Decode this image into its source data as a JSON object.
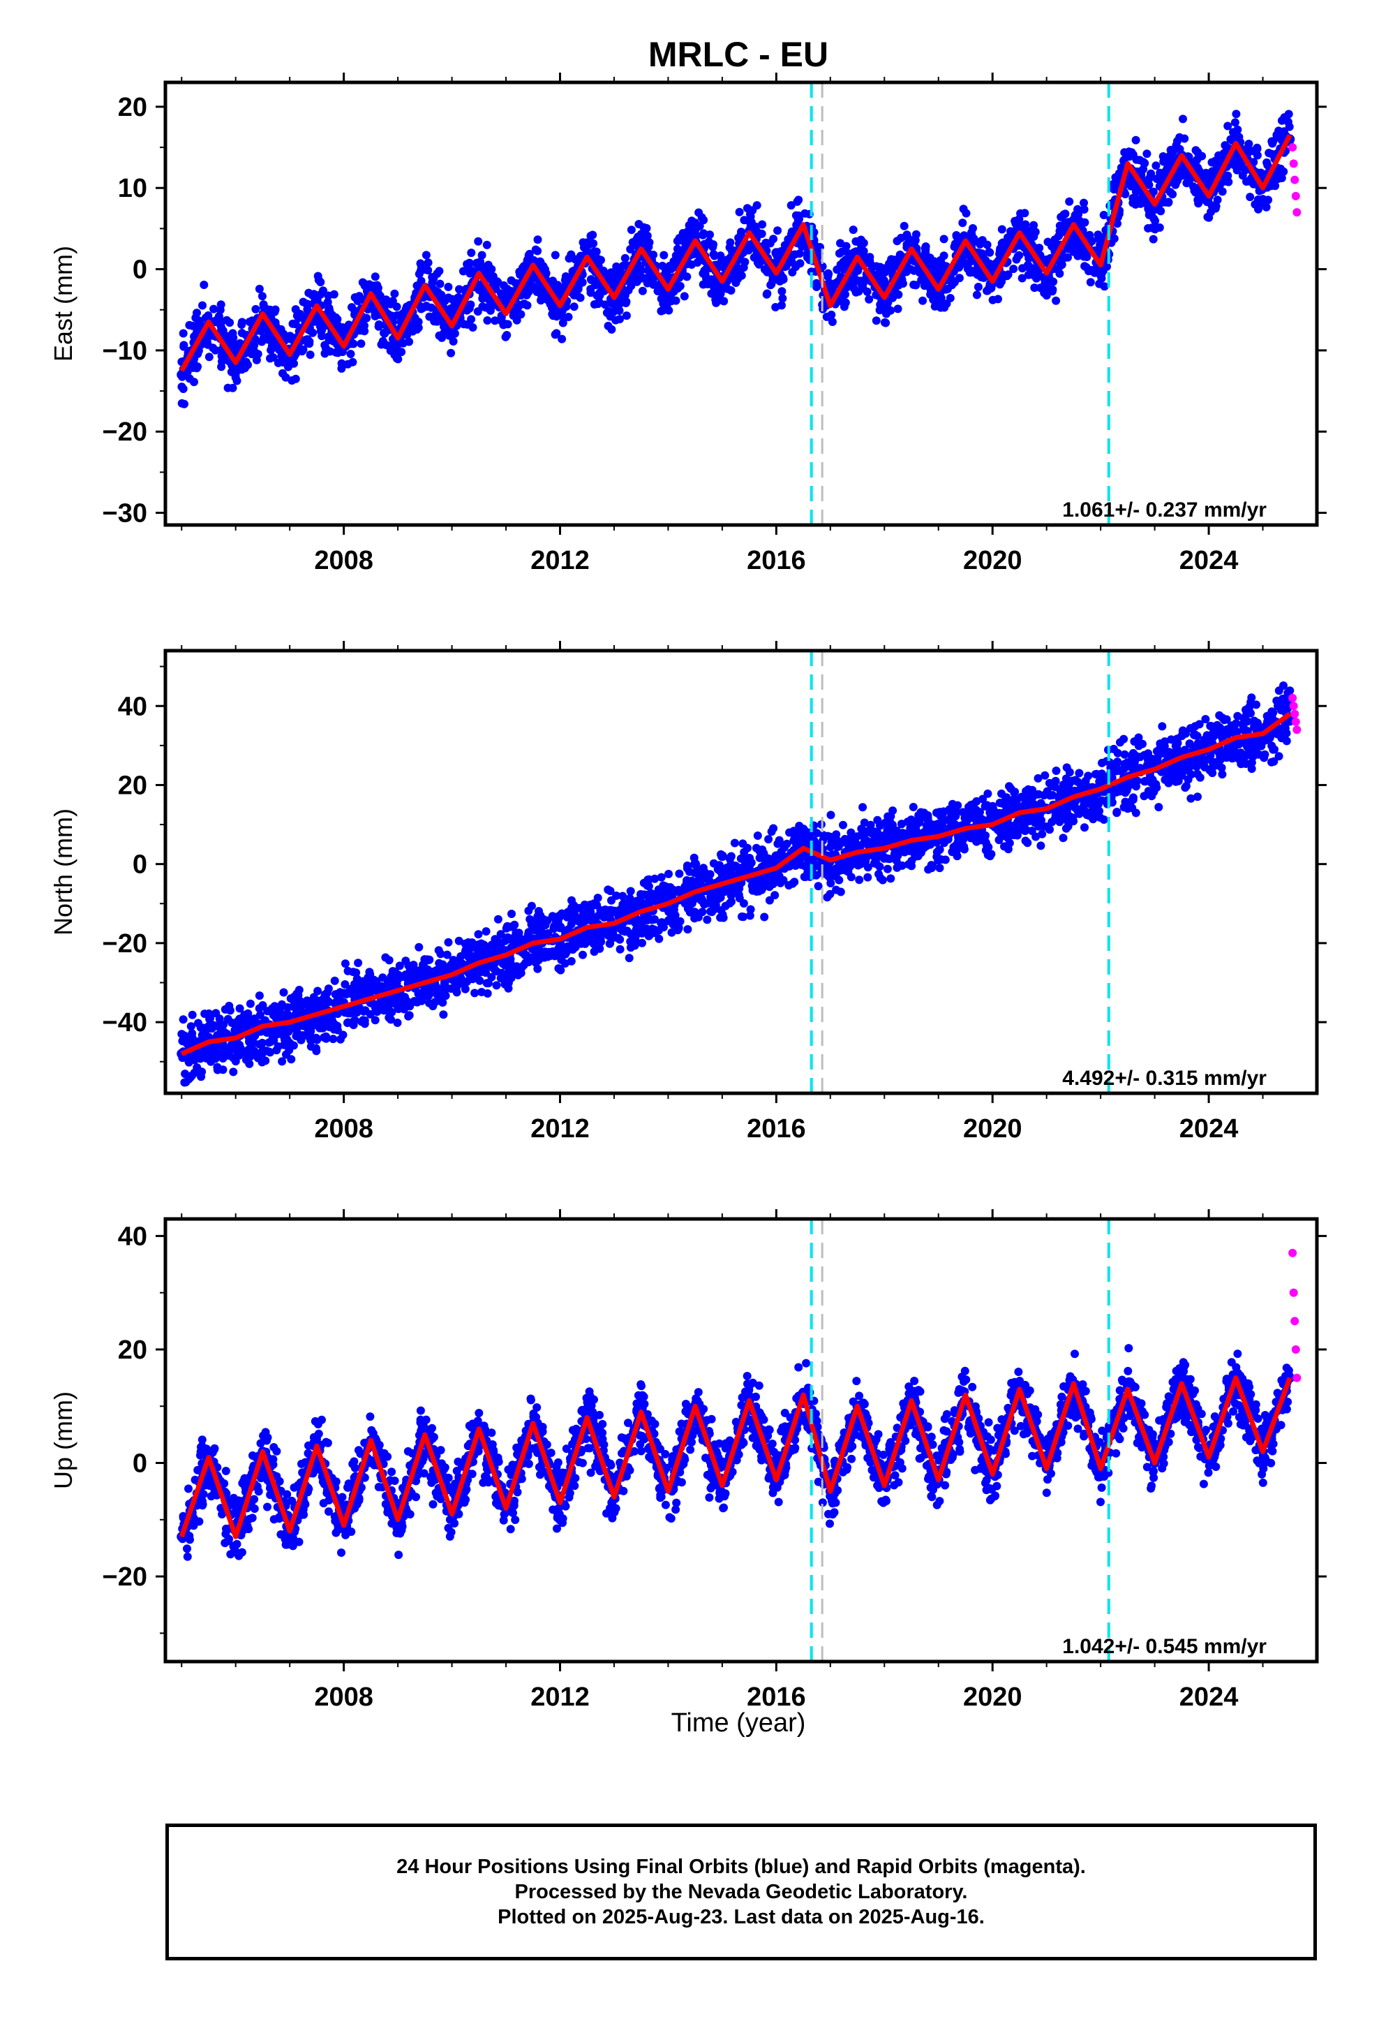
{
  "chart_data": {
    "type": "scatter",
    "title": "MRLC - EU",
    "xlabel": "Time (year)",
    "xlim": [
      2004.7,
      2026.0
    ],
    "x_ticks": [
      "2008",
      "2012",
      "2016",
      "2020",
      "2024"
    ],
    "grid": false,
    "colors": {
      "final_orbits": "#0000ff",
      "rapid_orbits": "#ff00ff",
      "model_fit": "#ff0000",
      "equipment_change": "#00e5ee",
      "other_event": "#bdbdbd"
    },
    "event_lines": [
      {
        "x": 2016.65,
        "type": "equipment_change"
      },
      {
        "x": 2016.85,
        "type": "other_event"
      },
      {
        "x": 2022.15,
        "type": "equipment_change"
      }
    ],
    "panels": [
      {
        "name": "east",
        "ylabel": "East (mm)",
        "ylim": [
          -31.5,
          23
        ],
        "y_ticks": [
          "20",
          "10",
          "0",
          "−10",
          "−20",
          "−30"
        ],
        "rate_label": "1.061+/- 0.237 mm/yr",
        "series": [
          {
            "name": "Final Orbits (blue)",
            "type": "scatter",
            "x": [
              2005.0,
              2005.5,
              2006.0,
              2006.5,
              2007.0,
              2007.5,
              2008.0,
              2008.5,
              2009.0,
              2009.5,
              2010.0,
              2010.5,
              2011.0,
              2011.5,
              2012.0,
              2012.5,
              2013.0,
              2013.5,
              2014.0,
              2014.5,
              2015.0,
              2015.5,
              2016.0,
              2016.5,
              2017.0,
              2017.5,
              2018.0,
              2018.5,
              2019.0,
              2019.5,
              2020.0,
              2020.5,
              2021.0,
              2021.5,
              2022.0,
              2022.5,
              2023.0,
              2023.5,
              2024.0,
              2024.5,
              2025.0,
              2025.5
            ],
            "y": [
              -13,
              -8,
              -11,
              -6,
              -10,
              -5,
              -9,
              -4,
              -8,
              -3,
              -6,
              -2,
              -5,
              1,
              -3,
              2,
              -2,
              3,
              -1,
              5,
              1,
              6,
              2,
              5,
              -2,
              1,
              -2,
              2,
              -1,
              3,
              0,
              4,
              1,
              6,
              3,
              12,
              8,
              14,
              9,
              15,
              10,
              16
            ]
          },
          {
            "name": "Rapid Orbits (magenta)",
            "type": "scatter",
            "x": [
              2025.55,
              2025.57,
              2025.59,
              2025.61,
              2025.63
            ],
            "y": [
              15,
              13,
              11,
              9,
              7
            ]
          },
          {
            "name": "model fit",
            "type": "line",
            "x": [
              2005.0,
              2005.5,
              2006.0,
              2006.5,
              2007.0,
              2007.5,
              2008.0,
              2008.5,
              2009.0,
              2009.5,
              2010.0,
              2010.5,
              2011.0,
              2011.5,
              2012.0,
              2012.5,
              2013.0,
              2013.5,
              2014.0,
              2014.5,
              2015.0,
              2015.5,
              2016.0,
              2016.5,
              2017.0,
              2017.5,
              2018.0,
              2018.5,
              2019.0,
              2019.5,
              2020.0,
              2020.5,
              2021.0,
              2021.5,
              2022.0,
              2022.5,
              2023.0,
              2023.5,
              2024.0,
              2024.5,
              2025.0,
              2025.5
            ],
            "y": [
              -12.5,
              -6.5,
              -11.5,
              -5.5,
              -10.5,
              -4.5,
              -9.5,
              -3,
              -8.5,
              -2,
              -7,
              -0.5,
              -5.5,
              0.5,
              -4.5,
              1.5,
              -3.5,
              2.5,
              -2.5,
              3.5,
              -1.5,
              4.5,
              -0.5,
              5.5,
              -4.5,
              1.5,
              -3.5,
              2.5,
              -2.5,
              3.5,
              -1.5,
              4.5,
              -0.5,
              5.5,
              0.5,
              13,
              8,
              14,
              9,
              15.5,
              10,
              16.5
            ]
          }
        ]
      },
      {
        "name": "north",
        "ylabel": "North (mm)",
        "ylim": [
          -58,
          54
        ],
        "y_ticks": [
          "40",
          "20",
          "0",
          "−20",
          "−40"
        ],
        "rate_label": "4.492+/- 0.315 mm/yr",
        "series": [
          {
            "name": "Final Orbits (blue)",
            "type": "scatter",
            "x": [
              2005.0,
              2005.5,
              2006.0,
              2006.5,
              2007.0,
              2007.5,
              2008.0,
              2008.5,
              2009.0,
              2009.5,
              2010.0,
              2010.5,
              2011.0,
              2011.5,
              2012.0,
              2012.5,
              2013.0,
              2013.5,
              2014.0,
              2014.5,
              2015.0,
              2015.5,
              2016.0,
              2016.5,
              2017.0,
              2017.5,
              2018.0,
              2018.5,
              2019.0,
              2019.5,
              2020.0,
              2020.5,
              2021.0,
              2021.5,
              2022.0,
              2022.5,
              2023.0,
              2023.5,
              2024.0,
              2024.5,
              2025.0,
              2025.5
            ],
            "y": [
              -48,
              -46,
              -44,
              -42,
              -40,
              -38,
              -37,
              -35,
              -33,
              -31,
              -28,
              -26,
              -22,
              -19,
              -16,
              -14,
              -12,
              -10,
              -7,
              0,
              2,
              1,
              2,
              4,
              1,
              3,
              4,
              6,
              7,
              9,
              10,
              12,
              14,
              17,
              19,
              22,
              25,
              27,
              30,
              33,
              34,
              37
            ]
          },
          {
            "name": "Rapid Orbits (magenta)",
            "type": "scatter",
            "x": [
              2025.55,
              2025.57,
              2025.59,
              2025.61,
              2025.63
            ],
            "y": [
              42,
              40,
              38,
              36,
              34
            ]
          },
          {
            "name": "model fit",
            "type": "line",
            "x": [
              2005.0,
              2005.5,
              2006.0,
              2006.5,
              2007.0,
              2007.5,
              2008.0,
              2008.5,
              2009.0,
              2009.5,
              2010.0,
              2010.5,
              2011.0,
              2011.5,
              2012.0,
              2012.5,
              2013.0,
              2013.5,
              2014.0,
              2014.5,
              2015.0,
              2015.5,
              2016.0,
              2016.5,
              2017.0,
              2017.5,
              2018.0,
              2018.5,
              2019.0,
              2019.5,
              2020.0,
              2020.5,
              2021.0,
              2021.5,
              2022.0,
              2022.5,
              2023.0,
              2023.5,
              2024.0,
              2024.5,
              2025.0,
              2025.5
            ],
            "y": [
              -48,
              -45,
              -44,
              -41,
              -40,
              -38,
              -36,
              -34,
              -32,
              -30,
              -28,
              -25,
              -23,
              -20,
              -19,
              -16,
              -15,
              -12,
              -10,
              -7,
              -5,
              -3,
              -1,
              4,
              1,
              3,
              4,
              6,
              7,
              9,
              10,
              13,
              14,
              17,
              19,
              22,
              24,
              27,
              29,
              32,
              33,
              38
            ]
          }
        ]
      },
      {
        "name": "up",
        "ylabel": "Up (mm)",
        "ylim": [
          -35,
          43
        ],
        "y_ticks": [
          "40",
          "20",
          "0",
          "−20"
        ],
        "rate_label": "1.042+/- 0.545 mm/yr",
        "series": [
          {
            "name": "Final Orbits (blue)",
            "type": "scatter",
            "x": [
              2005.0,
              2005.5,
              2006.0,
              2006.5,
              2007.0,
              2007.5,
              2008.0,
              2008.5,
              2009.0,
              2009.5,
              2010.0,
              2010.5,
              2011.0,
              2011.5,
              2012.0,
              2012.5,
              2013.0,
              2013.5,
              2014.0,
              2014.5,
              2015.0,
              2015.5,
              2016.0,
              2016.5,
              2017.0,
              2017.5,
              2018.0,
              2018.5,
              2019.0,
              2019.5,
              2020.0,
              2020.5,
              2021.0,
              2021.5,
              2022.0,
              2022.5,
              2023.0,
              2023.5,
              2024.0,
              2024.5,
              2025.0,
              2025.5
            ],
            "y": [
              -13,
              -1,
              -12,
              2,
              -11,
              3,
              -10,
              4,
              -9,
              5,
              -8,
              6,
              -7,
              7,
              -6,
              8,
              -5,
              9,
              -4,
              10,
              -3,
              11,
              -2,
              11,
              -5,
              10,
              -4,
              10,
              -3,
              11,
              -2,
              12,
              -1,
              13,
              -1,
              13,
              0,
              14,
              1,
              15,
              2,
              15
            ]
          },
          {
            "name": "Rapid Orbits (magenta)",
            "type": "scatter",
            "x": [
              2025.55,
              2025.57,
              2025.59,
              2025.61,
              2025.63
            ],
            "y": [
              37,
              30,
              25,
              20,
              15
            ]
          },
          {
            "name": "model fit",
            "type": "line",
            "x": [
              2005.0,
              2005.5,
              2006.0,
              2006.5,
              2007.0,
              2007.5,
              2008.0,
              2008.5,
              2009.0,
              2009.5,
              2010.0,
              2010.5,
              2011.0,
              2011.5,
              2012.0,
              2012.5,
              2013.0,
              2013.5,
              2014.0,
              2014.5,
              2015.0,
              2015.5,
              2016.0,
              2016.5,
              2017.0,
              2017.5,
              2018.0,
              2018.5,
              2019.0,
              2019.5,
              2020.0,
              2020.5,
              2021.0,
              2021.5,
              2022.0,
              2022.5,
              2023.0,
              2023.5,
              2024.0,
              2024.5,
              2025.0,
              2025.5
            ],
            "y": [
              -13,
              1,
              -13,
              2,
              -12,
              3,
              -11,
              4,
              -10,
              5,
              -9,
              6,
              -8,
              7,
              -7,
              8,
              -6,
              9,
              -5,
              10,
              -4,
              11,
              -3,
              12,
              -5,
              10,
              -4,
              11,
              -3,
              12,
              -2,
              13,
              -1,
              14,
              -1,
              13,
              0,
              14,
              1,
              15,
              2,
              15
            ]
          }
        ]
      }
    ]
  },
  "footer": {
    "line1": "24 Hour Positions Using Final Orbits (blue) and Rapid Orbits (magenta).",
    "line2": "Processed by the Nevada Geodetic Laboratory.",
    "line3": "Plotted on 2025-Aug-23. Last data on 2025-Aug-16."
  }
}
